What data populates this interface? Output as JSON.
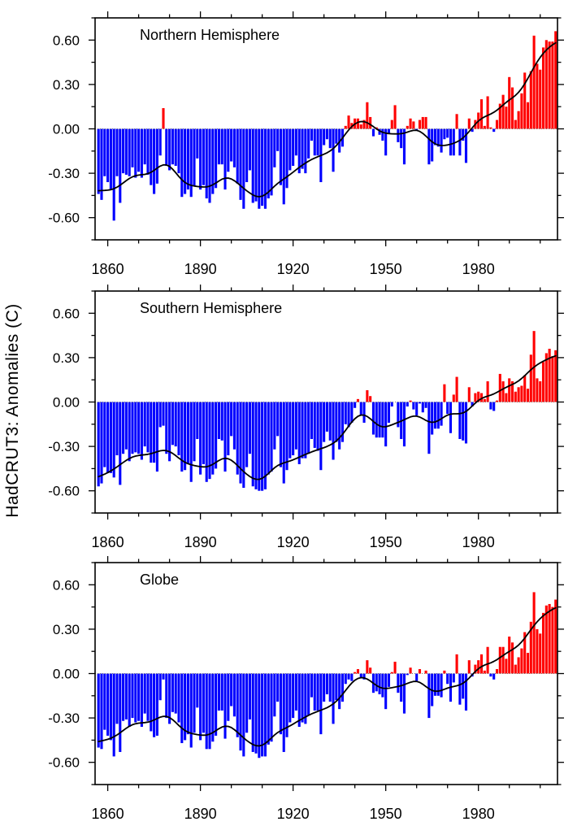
{
  "figure": {
    "y_axis_label": "HadCRUT3: Anomalies (C)"
  },
  "colors": {
    "positive_bar": "#ff0000",
    "negative_bar": "#0000ff",
    "smooth_line": "#000000",
    "frame": "#000000",
    "zero_line": "#777777",
    "text": "#000000",
    "background": "#ffffff"
  },
  "axes": {
    "x": {
      "min": 1855.9,
      "max": 2005.6,
      "major_ticks": [
        1860,
        1890,
        1920,
        1950,
        1980
      ],
      "major_labels": [
        "1860",
        "1890",
        "1920",
        "1950",
        "1980"
      ],
      "minor_ticks": [
        1870,
        1880,
        1900,
        1910,
        1930,
        1940,
        1960,
        1970,
        1990,
        2000
      ]
    },
    "y": {
      "min": -0.75,
      "max": 0.75,
      "major_ticks": [
        0.6,
        0.3,
        0.0,
        -0.3,
        -0.6
      ],
      "major_labels": [
        "0.60",
        "0.30",
        "0.00",
        "-0.30",
        "-0.60"
      ],
      "minor_ticks": [
        0.75,
        0.45,
        0.15,
        -0.15,
        -0.45,
        -0.75
      ]
    }
  },
  "chart_data": [
    {
      "type": "bar",
      "title": "Northern Hemisphere",
      "ylabel": "HadCRUT3: Anomalies (C)",
      "year_start": 1857,
      "year_end": 2005,
      "ylim": [
        -0.75,
        0.75
      ],
      "overlay": "smoothed line (low-pass filter of annual values)",
      "values": [
        -0.44,
        -0.48,
        -0.32,
        -0.36,
        -0.41,
        -0.62,
        -0.32,
        -0.5,
        -0.3,
        -0.31,
        -0.32,
        -0.26,
        -0.33,
        -0.29,
        -0.33,
        -0.24,
        -0.31,
        -0.38,
        -0.44,
        -0.37,
        -0.18,
        0.14,
        -0.25,
        -0.28,
        -0.24,
        -0.25,
        -0.3,
        -0.46,
        -0.44,
        -0.41,
        -0.46,
        -0.39,
        -0.2,
        -0.41,
        -0.38,
        -0.47,
        -0.5,
        -0.44,
        -0.4,
        -0.24,
        -0.24,
        -0.41,
        -0.29,
        -0.22,
        -0.26,
        -0.37,
        -0.48,
        -0.54,
        -0.36,
        -0.28,
        -0.5,
        -0.49,
        -0.54,
        -0.52,
        -0.54,
        -0.47,
        -0.45,
        -0.26,
        -0.15,
        -0.38,
        -0.51,
        -0.4,
        -0.28,
        -0.25,
        -0.18,
        -0.3,
        -0.27,
        -0.3,
        -0.2,
        -0.08,
        -0.18,
        -0.18,
        -0.36,
        -0.11,
        -0.07,
        -0.13,
        -0.29,
        -0.1,
        -0.16,
        -0.12,
        0.02,
        0.09,
        0.04,
        0.07,
        0.07,
        0.03,
        0.06,
        0.18,
        0.08,
        -0.05,
        0.01,
        -0.04,
        -0.08,
        -0.18,
        -0.03,
        0.06,
        0.16,
        -0.09,
        -0.13,
        -0.24,
        0.02,
        0.07,
        0.05,
        -0.01,
        0.06,
        0.08,
        0.08,
        -0.24,
        -0.22,
        -0.11,
        -0.12,
        -0.16,
        -0.07,
        -0.06,
        -0.18,
        -0.18,
        0.1,
        -0.18,
        -0.08,
        -0.23,
        0.07,
        -0.02,
        0.06,
        0.11,
        0.2,
        0.02,
        0.22,
        0.01,
        -0.02,
        0.06,
        0.17,
        0.23,
        0.15,
        0.35,
        0.28,
        0.06,
        0.12,
        0.24,
        0.38,
        0.18,
        0.39,
        0.63,
        0.44,
        0.4,
        0.55,
        0.6,
        0.59,
        0.59,
        0.66
      ]
    },
    {
      "type": "bar",
      "title": "Southern Hemisphere",
      "ylabel": "HadCRUT3: Anomalies (C)",
      "year_start": 1857,
      "year_end": 2005,
      "ylim": [
        -0.75,
        0.75
      ],
      "overlay": "smoothed line (low-pass filter of annual values)",
      "values": [
        -0.57,
        -0.55,
        -0.44,
        -0.48,
        -0.48,
        -0.51,
        -0.36,
        -0.56,
        -0.35,
        -0.32,
        -0.4,
        -0.35,
        -0.34,
        -0.35,
        -0.39,
        -0.3,
        -0.34,
        -0.41,
        -0.41,
        -0.47,
        -0.17,
        -0.16,
        -0.35,
        -0.4,
        -0.29,
        -0.3,
        -0.36,
        -0.47,
        -0.46,
        -0.42,
        -0.54,
        -0.4,
        -0.25,
        -0.49,
        -0.42,
        -0.54,
        -0.52,
        -0.49,
        -0.45,
        -0.25,
        -0.26,
        -0.47,
        -0.36,
        -0.23,
        -0.32,
        -0.49,
        -0.55,
        -0.58,
        -0.44,
        -0.35,
        -0.57,
        -0.59,
        -0.6,
        -0.6,
        -0.59,
        -0.49,
        -0.47,
        -0.32,
        -0.23,
        -0.44,
        -0.55,
        -0.46,
        -0.38,
        -0.36,
        -0.32,
        -0.42,
        -0.38,
        -0.38,
        -0.35,
        -0.25,
        -0.31,
        -0.33,
        -0.46,
        -0.27,
        -0.2,
        -0.26,
        -0.39,
        -0.27,
        -0.32,
        -0.27,
        -0.15,
        -0.17,
        -0.14,
        -0.04,
        0.02,
        -0.09,
        -0.14,
        0.08,
        0.04,
        -0.22,
        -0.24,
        -0.24,
        -0.24,
        -0.3,
        -0.14,
        -0.03,
        0.0,
        -0.17,
        -0.25,
        -0.3,
        -0.03,
        0.01,
        -0.05,
        -0.09,
        -0.01,
        -0.07,
        -0.04,
        -0.35,
        -0.22,
        -0.18,
        -0.18,
        -0.16,
        0.12,
        -0.08,
        -0.21,
        0.05,
        0.17,
        -0.25,
        -0.26,
        -0.28,
        0.1,
        -0.03,
        0.06,
        0.07,
        0.06,
        0.02,
        0.14,
        -0.05,
        -0.06,
        0.01,
        0.19,
        0.14,
        0.06,
        0.16,
        0.14,
        0.07,
        0.1,
        0.11,
        0.18,
        0.09,
        0.32,
        0.48,
        0.16,
        0.14,
        0.27,
        0.33,
        0.36,
        0.31,
        0.35
      ]
    },
    {
      "type": "bar",
      "title": "Globe",
      "ylabel": "HadCRUT3: Anomalies (C)",
      "year_start": 1857,
      "year_end": 2005,
      "ylim": [
        -0.75,
        0.75
      ],
      "overlay": "smoothed line (low-pass filter of annual values)",
      "values": [
        -0.5,
        -0.51,
        -0.38,
        -0.42,
        -0.45,
        -0.56,
        -0.34,
        -0.53,
        -0.32,
        -0.31,
        -0.36,
        -0.3,
        -0.33,
        -0.32,
        -0.36,
        -0.27,
        -0.32,
        -0.39,
        -0.43,
        -0.42,
        -0.18,
        -0.04,
        -0.3,
        -0.34,
        -0.26,
        -0.27,
        -0.33,
        -0.47,
        -0.45,
        -0.41,
        -0.5,
        -0.4,
        -0.23,
        -0.45,
        -0.4,
        -0.51,
        -0.51,
        -0.46,
        -0.42,
        -0.25,
        -0.25,
        -0.44,
        -0.32,
        -0.22,
        -0.29,
        -0.43,
        -0.52,
        -0.56,
        -0.4,
        -0.31,
        -0.53,
        -0.54,
        -0.57,
        -0.56,
        -0.56,
        -0.48,
        -0.46,
        -0.29,
        -0.19,
        -0.41,
        -0.53,
        -0.43,
        -0.33,
        -0.3,
        -0.25,
        -0.36,
        -0.33,
        -0.34,
        -0.28,
        -0.16,
        -0.25,
        -0.25,
        -0.41,
        -0.19,
        -0.14,
        -0.19,
        -0.34,
        -0.18,
        -0.24,
        -0.19,
        -0.07,
        -0.04,
        -0.05,
        0.01,
        0.03,
        -0.03,
        -0.04,
        0.09,
        0.04,
        -0.13,
        -0.12,
        -0.14,
        -0.16,
        -0.24,
        -0.09,
        0.01,
        0.08,
        -0.13,
        -0.19,
        -0.27,
        -0.01,
        0.04,
        0.0,
        -0.05,
        0.03,
        0.0,
        0.02,
        -0.3,
        -0.22,
        -0.15,
        -0.15,
        -0.16,
        0.02,
        -0.07,
        -0.19,
        -0.06,
        0.13,
        -0.21,
        -0.17,
        -0.25,
        0.09,
        -0.02,
        0.06,
        0.09,
        0.13,
        0.02,
        0.18,
        -0.02,
        -0.04,
        0.03,
        0.18,
        0.18,
        0.1,
        0.25,
        0.21,
        0.06,
        0.11,
        0.17,
        0.28,
        0.14,
        0.35,
        0.55,
        0.3,
        0.27,
        0.41,
        0.46,
        0.47,
        0.45,
        0.5
      ]
    }
  ]
}
